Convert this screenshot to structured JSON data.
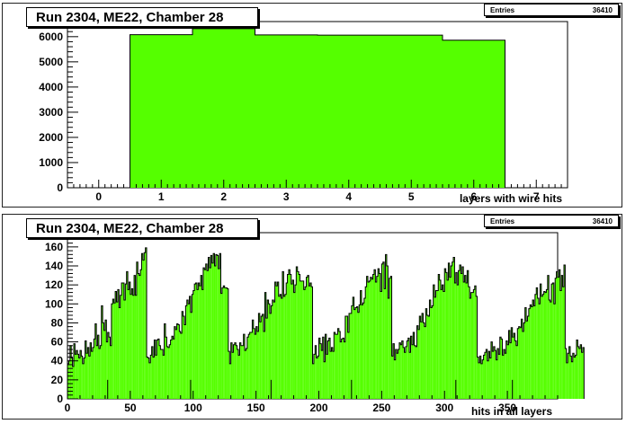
{
  "colors": {
    "fill": "#55ff00",
    "line": "#000000",
    "background": "#ffffff"
  },
  "chart_data": [
    {
      "type": "bar",
      "title": "Run 2304, ME22, Chamber 28",
      "xlabel": "layers with wire hits",
      "ylabel": "",
      "stats": {
        "label": "Entries",
        "value": "36410"
      },
      "xlim": [
        -0.5,
        7.5
      ],
      "ylim": [
        0,
        6600
      ],
      "xticks": [
        0,
        1,
        2,
        3,
        4,
        5,
        6,
        7
      ],
      "yticks": [
        0,
        1000,
        2000,
        3000,
        4000,
        5000,
        6000
      ],
      "bins": [
        {
          "low": 0.5,
          "high": 1.5,
          "value": 6080
        },
        {
          "low": 1.5,
          "high": 2.5,
          "value": 6320
        },
        {
          "low": 2.5,
          "high": 3.5,
          "value": 6070
        },
        {
          "low": 3.5,
          "high": 4.5,
          "value": 6060
        },
        {
          "low": 4.5,
          "high": 5.5,
          "value": 6060
        },
        {
          "low": 5.5,
          "high": 6.5,
          "value": 5860
        }
      ]
    },
    {
      "type": "bar",
      "title": "Run 2304, ME22, Chamber 28",
      "xlabel": "hits in all layers",
      "ylabel": "",
      "stats": {
        "label": "Entries",
        "value": "36410"
      },
      "xlim": [
        0,
        390
      ],
      "ylim": [
        0,
        175
      ],
      "xticks": [
        0,
        50,
        100,
        150,
        200,
        250,
        300,
        350
      ],
      "yticks": [
        0,
        20,
        40,
        60,
        80,
        100,
        120,
        140,
        160
      ],
      "bin_start": 0,
      "bin_width": 1,
      "values": [
        37,
        40,
        56,
        43,
        34,
        58,
        47,
        51,
        47,
        43,
        51,
        45,
        37,
        43,
        61,
        48,
        54,
        45,
        59,
        50,
        54,
        63,
        79,
        56,
        67,
        53,
        56,
        98,
        80,
        72,
        83,
        60,
        70,
        65,
        56,
        100,
        105,
        101,
        113,
        102,
        115,
        96,
        109,
        122,
        122,
        104,
        121,
        134,
        115,
        123,
        110,
        116,
        109,
        130,
        109,
        144,
        132,
        130,
        136,
        153,
        146,
        154,
        159,
        44,
        43,
        38,
        46,
        55,
        44,
        62,
        46,
        62,
        63,
        56,
        52,
        52,
        46,
        79,
        65,
        55,
        54,
        57,
        62,
        66,
        63,
        76,
        73,
        79,
        78,
        71,
        69,
        92,
        87,
        78,
        98,
        104,
        100,
        108,
        91,
        110,
        114,
        121,
        122,
        115,
        122,
        119,
        130,
        115,
        138,
        136,
        142,
        135,
        149,
        138,
        151,
        143,
        153,
        140,
        152,
        151,
        137,
        153,
        111,
        117,
        119,
        117,
        117,
        116,
        50,
        37,
        59,
        49,
        57,
        59,
        56,
        52,
        46,
        59,
        56,
        56,
        68,
        51,
        53,
        65,
        68,
        70,
        70,
        83,
        74,
        68,
        76,
        71,
        90,
        81,
        87,
        89,
        71,
        112,
        85,
        104,
        100,
        90,
        98,
        104,
        102,
        123,
        119,
        123,
        108,
        110,
        106,
        134,
        108,
        110,
        122,
        131,
        136,
        131,
        121,
        125,
        112,
        120,
        139,
        134,
        131,
        124,
        124,
        124,
        115,
        118,
        128,
        130,
        119,
        122,
        118,
        37,
        47,
        56,
        43,
        45,
        64,
        58,
        51,
        65,
        39,
        68,
        47,
        61,
        64,
        50,
        54,
        50,
        70,
        68,
        68,
        74,
        71,
        60,
        63,
        64,
        60,
        87,
        87,
        70,
        90,
        90,
        98,
        107,
        94,
        96,
        97,
        91,
        99,
        114,
        99,
        101,
        106,
        118,
        129,
        123,
        124,
        128,
        126,
        131,
        136,
        123,
        129,
        137,
        132,
        113,
        142,
        144,
        116,
        152,
        140,
        106,
        127,
        129,
        45,
        58,
        41,
        52,
        48,
        52,
        59,
        57,
        61,
        54,
        49,
        55,
        61,
        64,
        49,
        66,
        57,
        70,
        56,
        55,
        77,
        73,
        87,
        81,
        90,
        80,
        76,
        95,
        88,
        87,
        104,
        96,
        98,
        120,
        107,
        114,
        114,
        131,
        125,
        115,
        120,
        113,
        137,
        133,
        125,
        143,
        128,
        140,
        144,
        149,
        122,
        133,
        120,
        135,
        141,
        132,
        139,
        123,
        130,
        122,
        135,
        118,
        106,
        112,
        112,
        115,
        119,
        108,
        44,
        38,
        45,
        37,
        41,
        46,
        49,
        52,
        40,
        50,
        43,
        60,
        50,
        55,
        51,
        41,
        53,
        47,
        65,
        63,
        46,
        52,
        48,
        61,
        57,
        72,
        59,
        75,
        65,
        69,
        61,
        56,
        74,
        76,
        75,
        84,
        71,
        80,
        96,
        82,
        87,
        95,
        99,
        97,
        104,
        98,
        110,
        117,
        106,
        100,
        121,
        108,
        110,
        113,
        112,
        115,
        130,
        104,
        102,
        121,
        122,
        100,
        127,
        134,
        128,
        136,
        114,
        130,
        118,
        141,
        53,
        38,
        48,
        55,
        45,
        39,
        48,
        44,
        46,
        62,
        55,
        53,
        57,
        49,
        54
      ],
      "spikes": [
        {
          "x": 32,
          "value": 20
        },
        {
          "x": 98,
          "value": 20
        },
        {
          "x": 162,
          "value": 20
        },
        {
          "x": 226,
          "value": 20
        },
        {
          "x": 309,
          "value": 20
        },
        {
          "x": 354,
          "value": 20
        }
      ]
    }
  ]
}
